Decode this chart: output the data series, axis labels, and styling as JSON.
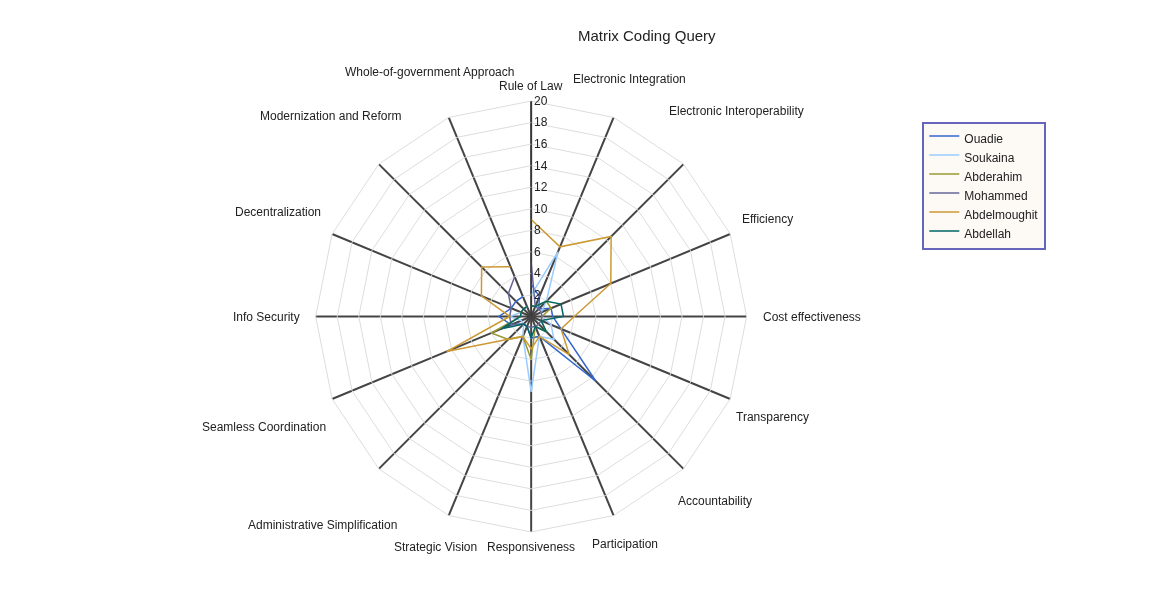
{
  "chart_data": {
    "type": "radar",
    "title": "Matrix Coding Query",
    "categories": [
      "Rule of Law",
      "Electronic Integration",
      "Electronic Interoperability",
      "Efficiency",
      "Cost effectiveness",
      "Transparency",
      "Accountability",
      "Participation",
      "Responsiveness",
      "Strategic Vision",
      "Administrative Simplification",
      "Seamless Coordination",
      "Info Security",
      "Decentralization",
      "Modernization and Reform",
      "Whole-of-government Approach"
    ],
    "series": [
      {
        "name": "Ouadie",
        "color": "#3366cc",
        "values": [
          3,
          2,
          1,
          2,
          2,
          3,
          8.5,
          2,
          2,
          1,
          1,
          2,
          3,
          2,
          2,
          2
        ]
      },
      {
        "name": "Soukaina",
        "color": "#99ccff",
        "values": [
          2,
          6.5,
          2,
          1,
          1,
          2,
          3,
          2,
          7,
          2,
          1,
          1,
          2,
          1,
          1,
          1
        ]
      },
      {
        "name": "Abderahim",
        "color": "#999933",
        "values": [
          1,
          1,
          2,
          2,
          1,
          1,
          2,
          1,
          4,
          2,
          3,
          4,
          1,
          1,
          1,
          1
        ]
      },
      {
        "name": "Mohammed",
        "color": "#666699",
        "values": [
          5,
          1,
          1,
          1,
          1,
          1,
          1,
          1,
          1,
          1,
          1,
          2,
          2,
          2,
          3,
          4
        ]
      },
      {
        "name": "Abdelmoughit",
        "color": "#cc9933",
        "values": [
          9,
          7,
          10.5,
          8,
          4,
          3,
          5,
          2,
          3,
          2,
          3,
          8.5,
          2,
          5,
          6.5,
          5
        ]
      },
      {
        "name": "Abdellah",
        "color": "#006666",
        "values": [
          1,
          1,
          2,
          3,
          3,
          1,
          2,
          1,
          2,
          1,
          1,
          3,
          1,
          1,
          1,
          1
        ]
      }
    ],
    "ylim": [
      0,
      20
    ],
    "yticks": [
      2,
      4,
      6,
      8,
      10,
      12,
      14,
      16,
      18,
      20
    ],
    "grid": true,
    "legend": "right",
    "marker": "none",
    "line_style": "solid"
  }
}
